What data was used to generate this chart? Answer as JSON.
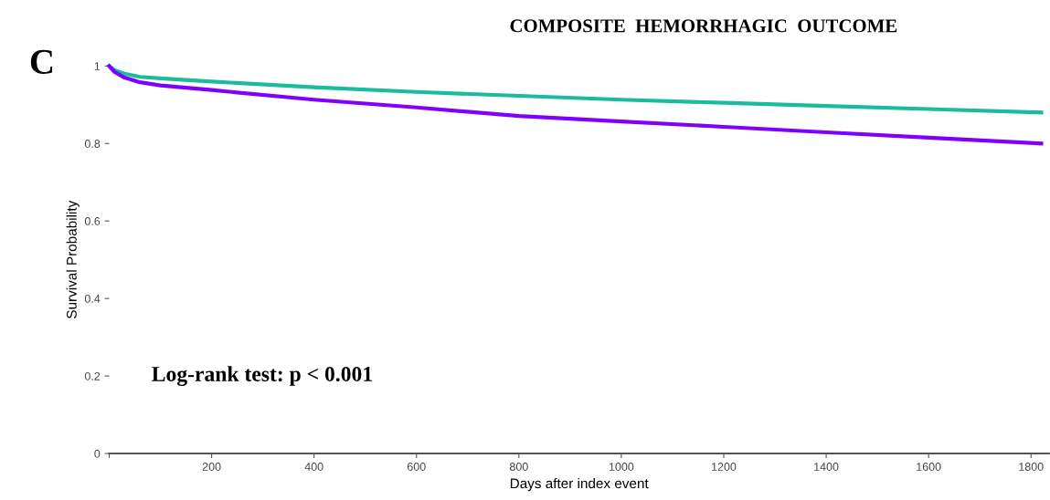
{
  "chart_data": {
    "type": "line",
    "title": "COMPOSITE  HEMORRHAGIC  OUTCOME",
    "xlabel": "Days after index event",
    "ylabel": "Survival Probability",
    "annotations": [
      "C",
      "Log-rank test: p < 0.001"
    ],
    "series": [
      {
        "color": "#1abc9c",
        "x": [
          0,
          10,
          30,
          60,
          100,
          200,
          400,
          600,
          800,
          1000,
          1200,
          1400,
          1600,
          1820
        ],
        "values": [
          1,
          0.99,
          0.98,
          0.972,
          0.968,
          0.96,
          0.945,
          0.933,
          0.923,
          0.913,
          0.905,
          0.897,
          0.889,
          0.88
        ]
      },
      {
        "color": "#8000ff",
        "x": [
          0,
          10,
          30,
          60,
          100,
          200,
          400,
          600,
          800,
          1000,
          1200,
          1400,
          1600,
          1820
        ],
        "values": [
          1,
          0.985,
          0.97,
          0.958,
          0.95,
          0.938,
          0.913,
          0.893,
          0.871,
          0.857,
          0.843,
          0.829,
          0.815,
          0.8
        ]
      }
    ],
    "xlim": [
      0,
      1835
    ],
    "xticks": [
      {
        "value": 0,
        "label": null
      },
      200,
      400,
      600,
      800,
      1000,
      1200,
      1400,
      1600,
      1800
    ],
    "ylim": [
      0,
      1
    ],
    "yticks": [
      0,
      0.2,
      0.4,
      0.6,
      0.8,
      1
    ],
    "grid": false,
    "legend": false,
    "line_style": "solid",
    "marker": "none"
  }
}
